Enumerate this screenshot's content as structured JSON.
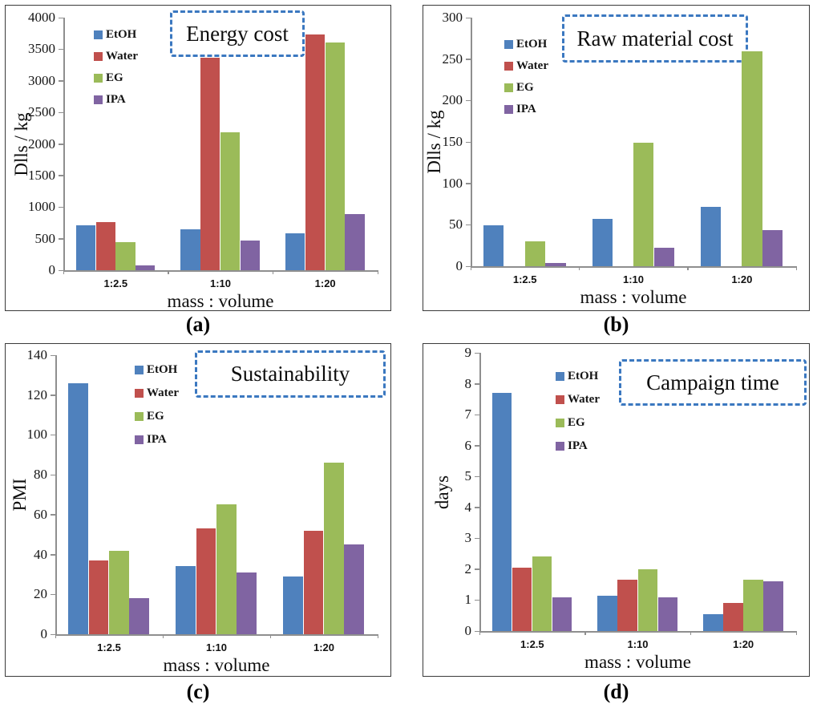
{
  "figure": {
    "background": "#ffffff",
    "accent_dashed_box_color": "#3b78c0",
    "axis_color": "#8f8f8f",
    "panel_border_color": "#3a3a3a"
  },
  "chart_data": [
    {
      "id": "a",
      "type": "bar",
      "title": "Energy cost",
      "caption": "(a)",
      "ylabel": "Dlls / kg",
      "xlabel": "mass : volume",
      "categories": [
        "1:2.5",
        "1:10",
        "1:20"
      ],
      "series": [
        {
          "name": "EtOH",
          "color": "#4F81BD",
          "values": [
            710,
            650,
            590
          ]
        },
        {
          "name": "Water",
          "color": "#C0504D",
          "values": [
            760,
            3370,
            3730
          ]
        },
        {
          "name": "EG",
          "color": "#9BBB59",
          "values": [
            450,
            2190,
            3610
          ]
        },
        {
          "name": "IPA",
          "color": "#8064A2",
          "values": [
            80,
            470,
            890
          ]
        }
      ],
      "ylim": [
        0,
        4000
      ],
      "ytick": 500,
      "grid": false,
      "legend_position": "inside-upper-left"
    },
    {
      "id": "b",
      "type": "bar",
      "title": "Raw material cost",
      "caption": "(b)",
      "ylabel": "Dlls / kg",
      "xlabel": "mass : volume",
      "categories": [
        "1:2.5",
        "1:10",
        "1:20"
      ],
      "series": [
        {
          "name": "EtOH",
          "color": "#4F81BD",
          "values": [
            49,
            57,
            72
          ]
        },
        {
          "name": "Water",
          "color": "#C0504D",
          "values": [
            0,
            0,
            0
          ]
        },
        {
          "name": "EG",
          "color": "#9BBB59",
          "values": [
            30,
            149,
            259
          ]
        },
        {
          "name": "IPA",
          "color": "#8064A2",
          "values": [
            4,
            22,
            44
          ]
        }
      ],
      "ylim": [
        0,
        300
      ],
      "ytick": 50,
      "grid": false,
      "legend_position": "inside-upper-left"
    },
    {
      "id": "c",
      "type": "bar",
      "title": "Sustainability",
      "caption": "(c)",
      "ylabel": "PMI",
      "xlabel": "mass : volume",
      "categories": [
        "1:2.5",
        "1:10",
        "1:20"
      ],
      "series": [
        {
          "name": "EtOH",
          "color": "#4F81BD",
          "values": [
            126,
            34,
            29
          ]
        },
        {
          "name": "Water",
          "color": "#C0504D",
          "values": [
            37,
            53,
            52
          ]
        },
        {
          "name": "EG",
          "color": "#9BBB59",
          "values": [
            42,
            65,
            86
          ]
        },
        {
          "name": "IPA",
          "color": "#8064A2",
          "values": [
            18,
            31,
            45
          ]
        }
      ],
      "ylim": [
        0,
        140
      ],
      "ytick": 20,
      "grid": false,
      "legend_position": "inside-upper-left"
    },
    {
      "id": "d",
      "type": "bar",
      "title": "Campaign time",
      "caption": "(d)",
      "ylabel": "days",
      "xlabel": "mass : volume",
      "categories": [
        "1:2.5",
        "1:10",
        "1:20"
      ],
      "series": [
        {
          "name": "EtOH",
          "color": "#4F81BD",
          "values": [
            7.7,
            1.15,
            0.55
          ]
        },
        {
          "name": "Water",
          "color": "#C0504D",
          "values": [
            2.05,
            1.65,
            0.9
          ]
        },
        {
          "name": "EG",
          "color": "#9BBB59",
          "values": [
            2.4,
            2.0,
            1.65
          ]
        },
        {
          "name": "IPA",
          "color": "#8064A2",
          "values": [
            1.1,
            1.1,
            1.6
          ]
        }
      ],
      "ylim": [
        0,
        9
      ],
      "ytick": 1,
      "grid": false,
      "legend_position": "inside-upper-left"
    }
  ]
}
